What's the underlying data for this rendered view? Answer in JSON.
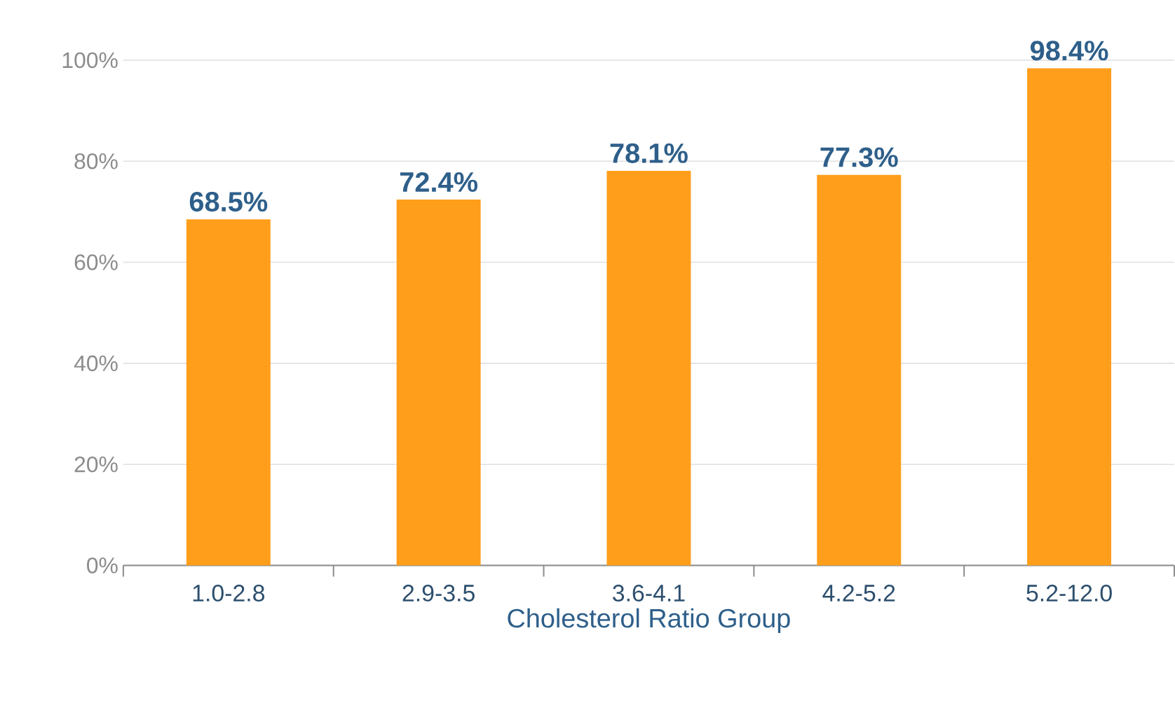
{
  "chart_data": {
    "type": "bar",
    "xlabel": "Cholesterol Ratio Group",
    "categories": [
      "1.0-2.8",
      "2.9-3.5",
      "3.6-4.1",
      "4.2-5.2",
      "5.2-12.0"
    ],
    "values": [
      68.5,
      72.4,
      78.1,
      77.3,
      98.4
    ],
    "value_labels": [
      "68.5%",
      "72.4%",
      "78.1%",
      "77.3%",
      "98.4%"
    ],
    "color": "#ff9e1b",
    "ylim": [
      0,
      100
    ],
    "yticks": [
      {
        "value": 0,
        "label": "0%"
      },
      {
        "value": 20,
        "label": "20%"
      },
      {
        "value": 40,
        "label": "40%"
      },
      {
        "value": 60,
        "label": "60%"
      },
      {
        "value": 80,
        "label": "80%"
      },
      {
        "value": 100,
        "label": "100%"
      }
    ],
    "grid": "y"
  }
}
